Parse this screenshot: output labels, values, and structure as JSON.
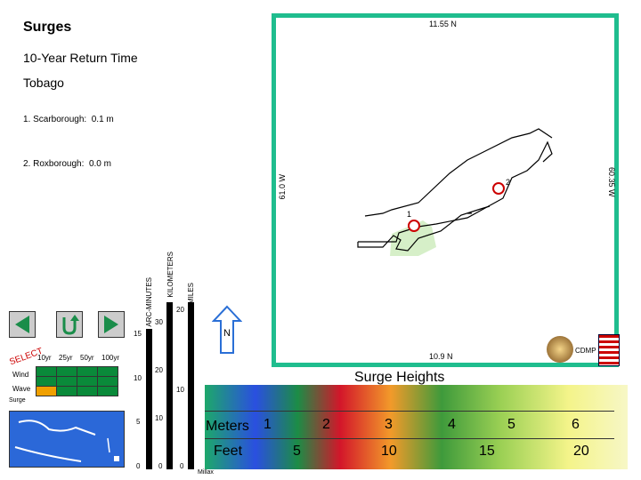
{
  "header": {
    "title": "Surges",
    "subtitle": "10-Year Return Time",
    "island": "Tobago"
  },
  "points": [
    {
      "label": "1. Scarborough:",
      "value": "0.1 m"
    },
    {
      "label": "2. Roxborough:",
      "value": "0.0 m"
    }
  ],
  "map": {
    "top_coord": "11.55 N",
    "bottom_coord": "10.9 N",
    "left_coord": "61.0 W",
    "right_coord": "60.35 W",
    "marker1_label": "1",
    "marker2_label": "2",
    "north_label": "N",
    "cdmp_label": "CDMP"
  },
  "scales": {
    "arc_minutes_label": "ARC-MINUTES",
    "kilometers_label": "KILOMETERS",
    "miles_label": "MILES",
    "arc_ticks": [
      "15",
      "10",
      "5",
      "0"
    ],
    "km_ticks": [
      "30",
      "20",
      "10",
      "0"
    ],
    "mi_ticks": [
      "20",
      "10",
      "0"
    ]
  },
  "select": {
    "label": "SELECT",
    "columns": [
      "10yr",
      "25yr",
      "50yr",
      "100yr"
    ],
    "rows": [
      "Wind",
      "Wave",
      "Surge"
    ]
  },
  "legend": {
    "title": "Surge Heights",
    "meters_label": "Meters",
    "feet_label": "Feet",
    "meters_ticks": [
      "1",
      "2",
      "3",
      "4",
      "5",
      "6"
    ],
    "feet_ticks": [
      "5",
      "10",
      "15",
      "20"
    ]
  },
  "milmax_label": "Millax"
}
